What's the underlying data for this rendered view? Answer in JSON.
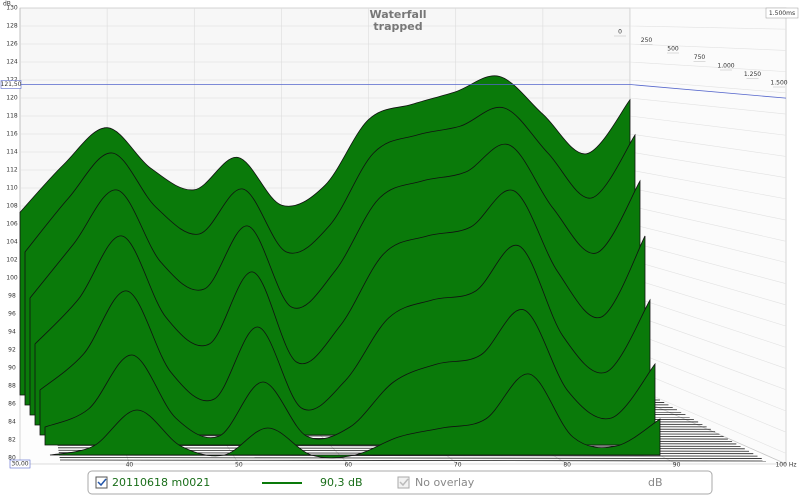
{
  "chart_data": {
    "type": "waterfall",
    "title": "Waterfall",
    "subtitle": "trapped",
    "y_label": "dB",
    "x": [
      30,
      35,
      40,
      45,
      50,
      55,
      60,
      65,
      70,
      75,
      80,
      85,
      90,
      95,
      100
    ],
    "series": [
      {
        "time": 0,
        "color": "#0a7a0a",
        "values": [
          107.3,
          112.6,
          116.7,
          112.2,
          109.8,
          113.4,
          108.1,
          110.3,
          117.6,
          119.3,
          120.7,
          122.4,
          118.2,
          113.8,
          119.8
        ]
      },
      {
        "time": 250,
        "color": "#0a7a0a",
        "values": [
          104,
          110,
          115,
          109,
          106,
          111,
          104,
          107,
          115,
          117,
          118,
          120,
          115,
          110,
          117
        ]
      },
      {
        "time": 500,
        "color": "#0a7a0a",
        "values": [
          100,
          106,
          112,
          104,
          101,
          108,
          99,
          103,
          111,
          113,
          114,
          117,
          110,
          105,
          113
        ]
      },
      {
        "time": 750,
        "color": "#0a7a0a",
        "values": [
          96,
          101,
          108,
          99,
          96,
          104,
          94,
          98,
          106,
          108,
          109,
          113,
          104,
          99,
          108
        ]
      },
      {
        "time": 1000,
        "color": "#0a7a0a",
        "values": [
          92,
          96,
          103,
          94,
          91,
          99,
          90,
          93,
          100,
          102,
          103,
          108,
          98,
          94,
          102
        ]
      },
      {
        "time": 1250,
        "color": "#0a7a0a",
        "values": [
          89,
          91,
          97,
          90,
          88,
          94,
          88,
          89,
          94,
          96,
          97,
          102,
          93,
          90,
          96
        ]
      },
      {
        "time": 1500,
        "color": "#0a7a0a",
        "values": [
          87,
          88,
          92,
          88,
          87,
          90,
          87,
          87,
          89,
          90,
          91,
          96,
          89,
          88,
          91
        ]
      }
    ],
    "xlim": [
      30,
      100
    ],
    "xticks": [
      40,
      50,
      60,
      70,
      80,
      90,
      {
        "value": 100,
        "label": "100 Hz"
      }
    ],
    "ylim": [
      80,
      130
    ],
    "yticks": [
      80,
      82,
      84,
      86,
      88,
      90,
      92,
      94,
      96,
      98,
      100,
      102,
      104,
      106,
      108,
      110,
      112,
      114,
      116,
      118,
      120,
      122,
      124,
      126,
      128,
      130
    ],
    "zlim": [
      0,
      1500
    ],
    "zticks": [
      0,
      250,
      500,
      750,
      {
        "value": 1000,
        "label": "1.000"
      },
      {
        "value": 1250,
        "label": "1.250"
      },
      {
        "value": 1500,
        "label": "1.500"
      }
    ],
    "time_range_label": "1.500ms",
    "cursor_y": {
      "value": 121.5,
      "label": "121,50"
    },
    "cursor_x": {
      "value": 30,
      "label": "30,00"
    },
    "grid": true
  },
  "legend_bar": {
    "measurement": "20110618 m0021",
    "level": "90,3 dB",
    "overlay": "No overlay",
    "unit": "dB"
  }
}
